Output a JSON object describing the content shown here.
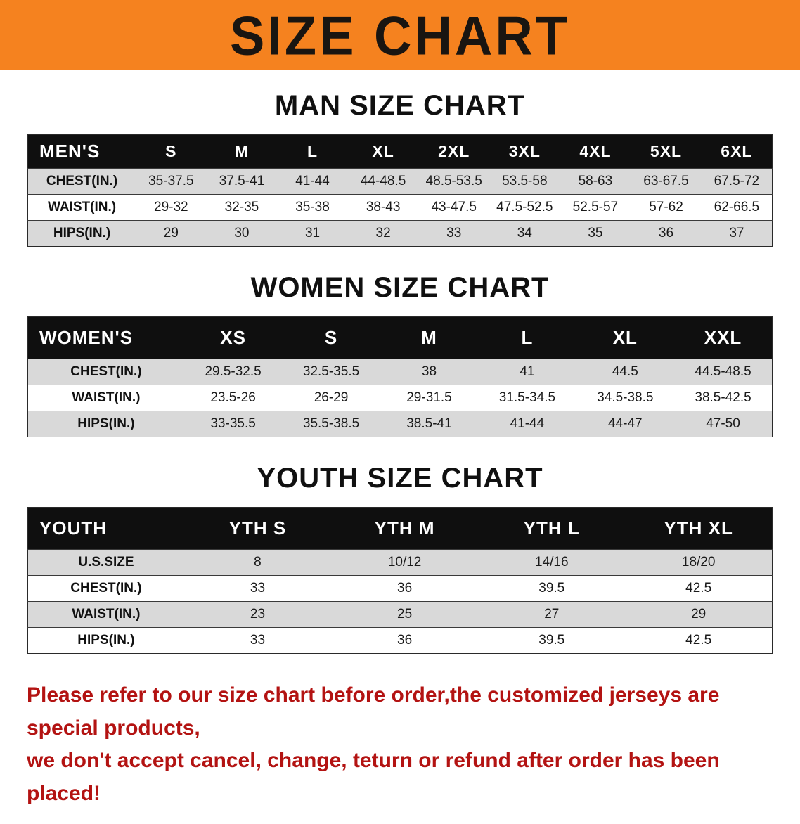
{
  "banner": {
    "title": "SIZE CHART"
  },
  "colors": {
    "banner_bg": "#F5821F",
    "header_bg": "#0F0F0F",
    "row_shade": "#D9D9D9",
    "footer_text": "#B31312"
  },
  "chart_data": [
    {
      "type": "table",
      "title": "MAN SIZE CHART",
      "columns": [
        "MEN'S",
        "S",
        "M",
        "L",
        "XL",
        "2XL",
        "3XL",
        "4XL",
        "5XL",
        "6XL"
      ],
      "rows": [
        [
          "CHEST(IN.)",
          "35-37.5",
          "37.5-41",
          "41-44",
          "44-48.5",
          "48.5-53.5",
          "53.5-58",
          "58-63",
          "63-67.5",
          "67.5-72"
        ],
        [
          "WAIST(IN.)",
          "29-32",
          "32-35",
          "35-38",
          "38-43",
          "43-47.5",
          "47.5-52.5",
          "52.5-57",
          "57-62",
          "62-66.5"
        ],
        [
          "HIPS(IN.)",
          "29",
          "30",
          "31",
          "32",
          "33",
          "34",
          "35",
          "36",
          "37"
        ]
      ]
    },
    {
      "type": "table",
      "title": "WOMEN SIZE CHART",
      "columns": [
        "WOMEN'S",
        "XS",
        "S",
        "M",
        "L",
        "XL",
        "XXL"
      ],
      "rows": [
        [
          "CHEST(IN.)",
          "29.5-32.5",
          "32.5-35.5",
          "38",
          "41",
          "44.5",
          "44.5-48.5"
        ],
        [
          "WAIST(IN.)",
          "23.5-26",
          "26-29",
          "29-31.5",
          "31.5-34.5",
          "34.5-38.5",
          "38.5-42.5"
        ],
        [
          "HIPS(IN.)",
          "33-35.5",
          "35.5-38.5",
          "38.5-41",
          "41-44",
          "44-47",
          "47-50"
        ]
      ]
    },
    {
      "type": "table",
      "title": "YOUTH SIZE CHART",
      "columns": [
        "YOUTH",
        "YTH S",
        "YTH M",
        "YTH L",
        "YTH XL"
      ],
      "rows": [
        [
          "U.S.SIZE",
          "8",
          "10/12",
          "14/16",
          "18/20"
        ],
        [
          "CHEST(IN.)",
          "33",
          "36",
          "39.5",
          "42.5"
        ],
        [
          "WAIST(IN.)",
          "23",
          "25",
          "27",
          "29"
        ],
        [
          "HIPS(IN.)",
          "33",
          "36",
          "39.5",
          "42.5"
        ]
      ]
    }
  ],
  "footer": {
    "line1": "Please refer to our size chart before order,the customized jerseys are special products,",
    "line2": "we don't accept cancel, change, teturn or refund after order has been placed!"
  }
}
